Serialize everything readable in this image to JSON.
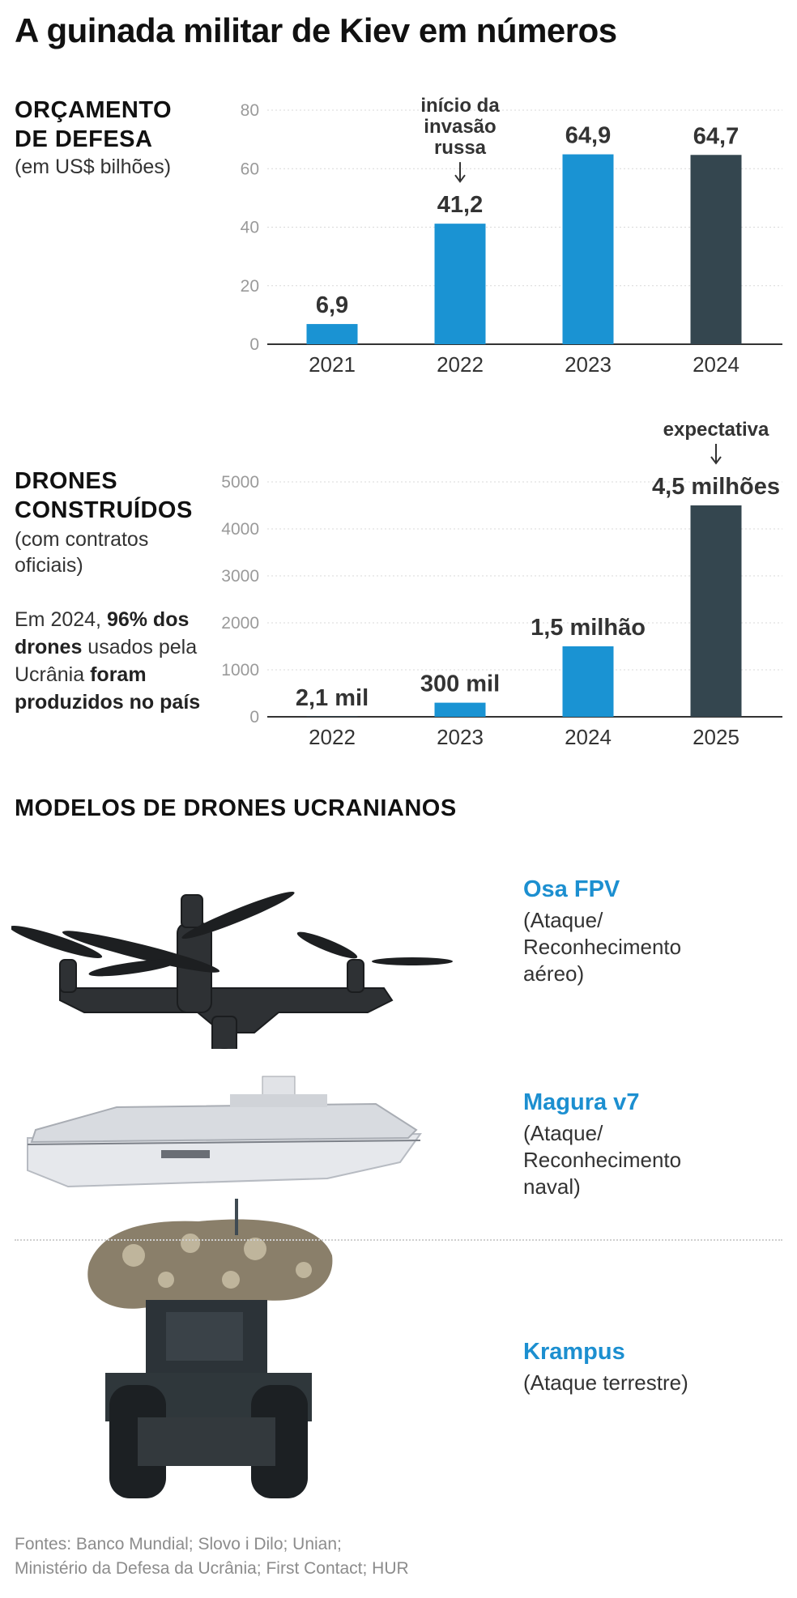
{
  "title": "A guinada militar de Kiev em números",
  "colors": {
    "blue": "#1a93d3",
    "dark": "#34464f",
    "accent_text": "#1c8fd0"
  },
  "budget": {
    "title_line1": "ORÇAMENTO",
    "title_line2": "DE DEFESA",
    "subtitle": "(em US$ bilhões)"
  },
  "drones": {
    "title_line1": "DRONES",
    "title_line2": "CONSTRUÍDOS",
    "subtitle_line1": "(com contratos",
    "subtitle_line2": "oficiais)",
    "note_prefix": "Em 2024, ",
    "note_bold1": "96% dos drones",
    "note_mid": " usados pela Ucrânia ",
    "note_bold2": "foram produzidos no país"
  },
  "chart_data": [
    {
      "type": "bar",
      "categories": [
        "2021",
        "2022",
        "2023",
        "2024"
      ],
      "values": [
        6.9,
        41.2,
        64.9,
        64.7
      ],
      "value_labels": [
        "6,9",
        "41,2",
        "64,9",
        "64,7"
      ],
      "bar_colors": [
        "blue",
        "blue",
        "blue",
        "dark"
      ],
      "ylim": [
        0,
        80
      ],
      "yticks": [
        0,
        20,
        40,
        60,
        80
      ],
      "grid": true,
      "annotation": {
        "category": "2022",
        "lines": [
          "início da",
          "invasão",
          "russa"
        ]
      }
    },
    {
      "type": "bar",
      "categories": [
        "2022",
        "2023",
        "2024",
        "2025"
      ],
      "values": [
        2.1,
        300,
        1500,
        4500
      ],
      "value_unit": "milhares",
      "value_labels": [
        "2,1 mil",
        "300 mil",
        "1,5 milhão",
        "4,5 milhões"
      ],
      "bar_colors": [
        "blue",
        "blue",
        "blue",
        "dark"
      ],
      "ylim": [
        0,
        5000
      ],
      "yticks": [
        0,
        1000,
        2000,
        3000,
        4000,
        5000
      ],
      "grid": true,
      "annotation": {
        "category": "2025",
        "lines": [
          "expectativa"
        ]
      }
    }
  ],
  "models": {
    "title": "MODELOS DE DRONES UCRANIANOS",
    "items": [
      {
        "name": "Osa FPV",
        "desc": [
          "(Ataque/",
          "Reconhecimento",
          "aéreo)"
        ]
      },
      {
        "name": "Magura v7",
        "desc": [
          "(Ataque/",
          "Reconhecimento",
          "naval)"
        ]
      },
      {
        "name": "Krampus",
        "desc": [
          "(Ataque terrestre)"
        ]
      }
    ]
  },
  "sources_line1": "Fontes: Banco Mundial; Slovo i Dilo; Unian;",
  "sources_line2": "Ministério da Defesa da Ucrânia; First Contact; HUR"
}
